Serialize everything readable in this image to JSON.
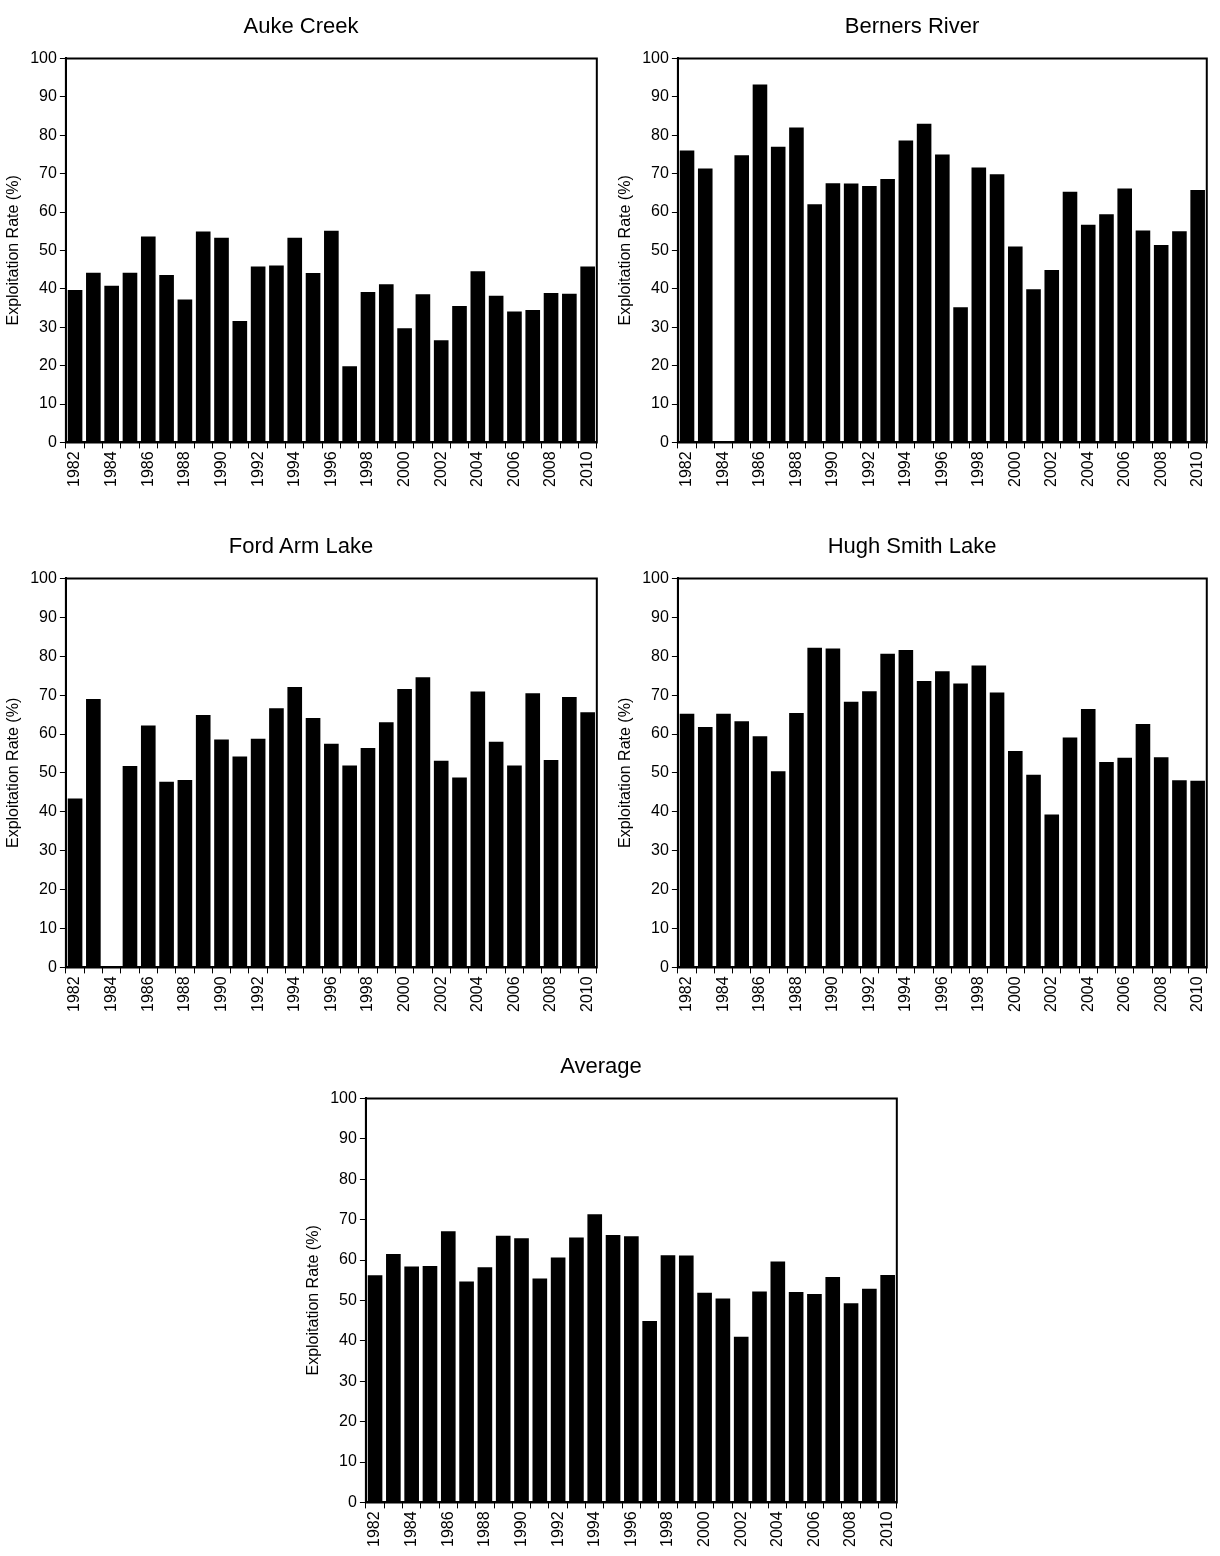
{
  "chart_data": [
    {
      "type": "bar",
      "title": "Auke Creek",
      "ylabel": "Exploitation Rate (%)",
      "color": "#000000",
      "ylim": [
        0,
        100
      ],
      "yticks": [
        0,
        10,
        20,
        30,
        40,
        50,
        60,
        70,
        80,
        90,
        100
      ],
      "categories": [
        "1982",
        null,
        "1984",
        null,
        "1986",
        null,
        "1988",
        null,
        "1990",
        null,
        "1992",
        null,
        "1994",
        null,
        "1996",
        null,
        "1998",
        null,
        "2000",
        null,
        "2002",
        null,
        "2004",
        null,
        "2006",
        null,
        "2008",
        null,
        "2010"
      ],
      "values": [
        39.7,
        44.2,
        40.8,
        44.2,
        53.6,
        43.6,
        37.2,
        54.9,
        53.3,
        31.6,
        45.8,
        46.1,
        53.3,
        44.1,
        55.1,
        19.8,
        39.2,
        41.2,
        29.7,
        38.6,
        26.6,
        35.5,
        44.6,
        38.2,
        34.1,
        34.5,
        38.9,
        38.7,
        45.8
      ]
    },
    {
      "type": "bar",
      "title": "Berners River",
      "ylabel": "Exploitation Rate (%)",
      "color": "#000000",
      "ylim": [
        0,
        100
      ],
      "yticks": [
        0,
        10,
        20,
        30,
        40,
        50,
        60,
        70,
        80,
        90,
        100
      ],
      "categories": [
        "1982",
        null,
        "1984",
        null,
        "1986",
        null,
        "1988",
        null,
        "1990",
        null,
        "1992",
        null,
        "1994",
        null,
        "1996",
        null,
        "1998",
        null,
        "2000",
        null,
        "2002",
        null,
        "2004",
        null,
        "2006",
        null,
        "2008",
        null,
        "2010"
      ],
      "values": [
        76,
        71.3,
        null,
        74.8,
        93.2,
        77,
        82,
        62,
        67.5,
        67.4,
        66.8,
        68.6,
        78.6,
        83,
        75,
        35.2,
        71.6,
        69.8,
        51,
        39.9,
        44.9,
        65.3,
        56.7,
        59.4,
        66.1,
        55.2,
        51.4,
        55,
        65.7
      ]
    },
    {
      "type": "bar",
      "title": "Ford Arm Lake",
      "ylabel": "Exploitation Rate (%)",
      "color": "#000000",
      "ylim": [
        0,
        100
      ],
      "yticks": [
        0,
        10,
        20,
        30,
        40,
        50,
        60,
        70,
        80,
        90,
        100
      ],
      "categories": [
        "1982",
        null,
        "1984",
        null,
        "1986",
        null,
        "1988",
        null,
        "1990",
        null,
        "1992",
        null,
        "1994",
        null,
        "1996",
        null,
        "1998",
        null,
        "2000",
        null,
        "2002",
        null,
        "2004",
        null,
        "2006",
        null,
        "2008",
        null,
        "2010"
      ],
      "values": [
        43.4,
        69,
        null,
        51.8,
        62.2,
        47.7,
        48.2,
        64.9,
        58.6,
        54.2,
        58.8,
        66.6,
        72.1,
        64.1,
        57.5,
        51.9,
        56.4,
        63,
        71.6,
        74.6,
        53.1,
        48.8,
        70.9,
        58,
        51.9,
        70.5,
        53.3,
        69.5,
        65.6
      ]
    },
    {
      "type": "bar",
      "title": "Hugh Smith Lake",
      "ylabel": "Exploitation Rate (%)",
      "color": "#000000",
      "ylim": [
        0,
        100
      ],
      "yticks": [
        0,
        10,
        20,
        30,
        40,
        50,
        60,
        70,
        80,
        90,
        100
      ],
      "categories": [
        "1982",
        null,
        "1984",
        null,
        "1986",
        null,
        "1988",
        null,
        "1990",
        null,
        "1992",
        null,
        "1994",
        null,
        "1996",
        null,
        "1998",
        null,
        "2000",
        null,
        "2002",
        null,
        "2004",
        null,
        "2006",
        null,
        "2008",
        null,
        "2010"
      ],
      "values": [
        65.2,
        61.8,
        65.2,
        63.3,
        59.4,
        50.4,
        65.4,
        82.2,
        82,
        68.3,
        71,
        80.6,
        81.6,
        73.6,
        76.1,
        73,
        77.6,
        70.7,
        55.6,
        49.5,
        39.3,
        59.1,
        66.4,
        52.8,
        53.9,
        62.6,
        54,
        48.1,
        48
      ]
    },
    {
      "type": "bar",
      "title": "Average",
      "ylabel": "Exploitation Rate (%)",
      "color": "#000000",
      "ylim": [
        0,
        100
      ],
      "yticks": [
        0,
        10,
        20,
        30,
        40,
        50,
        60,
        70,
        80,
        90,
        100
      ],
      "categories": [
        "1982",
        null,
        "1984",
        null,
        "1986",
        null,
        "1988",
        null,
        "1990",
        null,
        "1992",
        null,
        "1994",
        null,
        "1996",
        null,
        "1998",
        null,
        "2000",
        null,
        "2002",
        null,
        "2004",
        null,
        "2006",
        null,
        "2008",
        null,
        "2010"
      ],
      "values": [
        56.2,
        61.5,
        58.4,
        58.5,
        67.1,
        54.7,
        58.2,
        66,
        65.4,
        55.4,
        60.6,
        65.6,
        71.3,
        66.2,
        65.9,
        44.9,
        61.2,
        61.1,
        51.9,
        50.5,
        41,
        52.2,
        59.6,
        52.1,
        51.6,
        55.8,
        49.3,
        52.9,
        56.3
      ]
    }
  ]
}
